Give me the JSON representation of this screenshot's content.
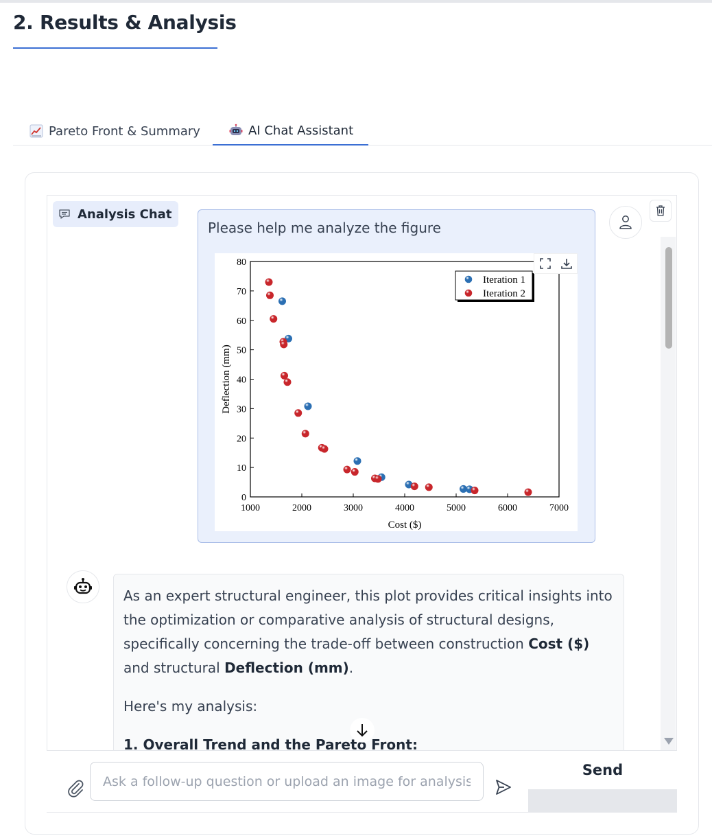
{
  "page": {
    "title": "2. Results & Analysis"
  },
  "tabs": [
    {
      "label": "Pareto Front & Summary",
      "icon": "chart-increasing-icon"
    },
    {
      "label": "AI Chat Assistant",
      "icon": "robot-icon",
      "active": true
    }
  ],
  "chat": {
    "label": "Analysis Chat",
    "user_message": "Please help me analyze the figure",
    "bot_message": {
      "p1_a": "As an expert structural engineer, this plot provides critical insights into the optimization or comparative analysis of structural designs, specifically concerning the trade-off between construction ",
      "p1_b1": "Cost ($)",
      "p1_c": " and structural ",
      "p1_b2": "Deflection (mm)",
      "p1_d": ".",
      "p2": "Here's my analysis:",
      "heading": "1. Overall Trend and the Pareto Front:"
    },
    "input_placeholder": "Ask a follow-up question or upload an image for analysis...",
    "send_label": "Send"
  },
  "chart_data": {
    "type": "scatter",
    "xlabel": "Cost ($)",
    "ylabel": "Deflection (mm)",
    "xlim": [
      1000,
      7000
    ],
    "ylim": [
      0,
      80
    ],
    "xticks": [
      1000,
      2000,
      3000,
      4000,
      5000,
      6000,
      7000
    ],
    "yticks": [
      0,
      10,
      20,
      30,
      40,
      50,
      60,
      70,
      80
    ],
    "legend_position": "top-right",
    "series": [
      {
        "name": "Iteration 1",
        "color": "#2b6fb3",
        "points": [
          [
            1620,
            66.5
          ],
          [
            1740,
            53.8
          ],
          [
            2120,
            30.8
          ],
          [
            3080,
            12.2
          ],
          [
            3550,
            6.7
          ],
          [
            4080,
            4.2
          ],
          [
            5140,
            2.7
          ],
          [
            5260,
            2.6
          ]
        ]
      },
      {
        "name": "Iteration 2",
        "color": "#c8262b",
        "points": [
          [
            1360,
            73.0
          ],
          [
            1380,
            68.5
          ],
          [
            1450,
            60.5
          ],
          [
            1640,
            52.7
          ],
          [
            1650,
            51.8
          ],
          [
            1660,
            41.2
          ],
          [
            1720,
            39.0
          ],
          [
            1930,
            28.5
          ],
          [
            2070,
            21.5
          ],
          [
            2390,
            16.7
          ],
          [
            2440,
            16.3
          ],
          [
            2880,
            9.3
          ],
          [
            3030,
            8.5
          ],
          [
            3420,
            6.3
          ],
          [
            3480,
            6.1
          ],
          [
            4190,
            3.6
          ],
          [
            4470,
            3.3
          ],
          [
            5360,
            2.2
          ],
          [
            6400,
            1.6
          ]
        ]
      }
    ]
  }
}
